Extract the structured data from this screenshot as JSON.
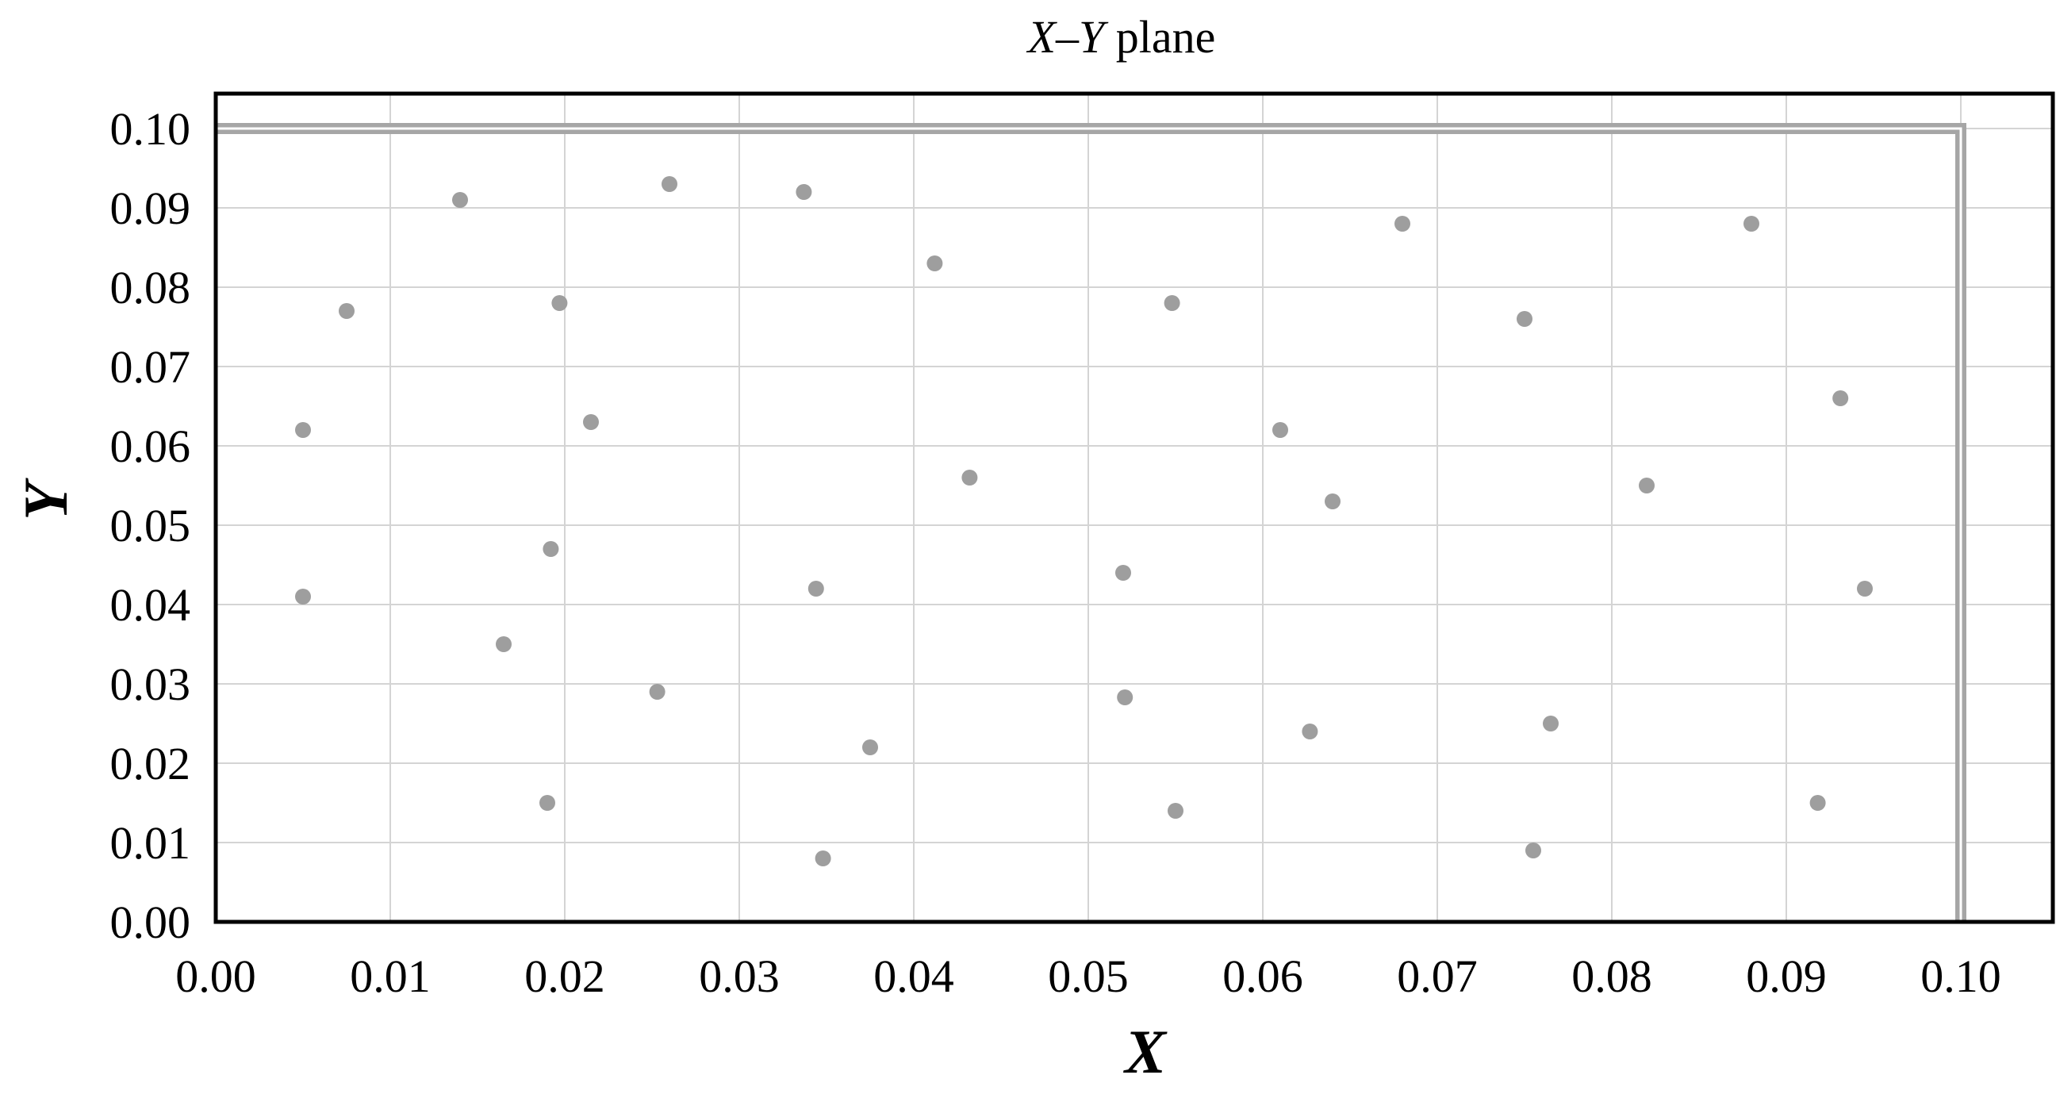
{
  "chart_data": {
    "type": "scatter",
    "title": {
      "var_x": "X",
      "dash": "–",
      "var_y": "Y",
      "rest": " plane"
    },
    "xlabel": "X",
    "ylabel": "Y",
    "xlim": [
      0.0,
      0.1
    ],
    "ylim": [
      0.0,
      0.1
    ],
    "x_ticks": [
      "0.00",
      "0.01",
      "0.02",
      "0.03",
      "0.04",
      "0.05",
      "0.06",
      "0.07",
      "0.08",
      "0.09",
      "0.10"
    ],
    "y_ticks": [
      "0.00",
      "0.01",
      "0.02",
      "0.03",
      "0.04",
      "0.05",
      "0.06",
      "0.07",
      "0.08",
      "0.09",
      "0.10"
    ],
    "grid": true,
    "legend": "none",
    "colors": {
      "points": "#9e9e9e",
      "grid": "#d4d4d4",
      "boundary": "#a6a6a6",
      "frame": "#000000"
    },
    "boundary_line": {
      "x": [
        0.0,
        0.1,
        0.1
      ],
      "y": [
        0.1,
        0.1,
        0.0
      ]
    },
    "series": [
      {
        "x": [
          0.005,
          0.0075,
          0.014,
          0.026,
          0.0337,
          0.0412,
          0.0197,
          0.0215,
          0.005,
          0.0192,
          0.0165,
          0.0253,
          0.019,
          0.0344,
          0.0375,
          0.0348,
          0.0432,
          0.0548,
          0.052,
          0.0521,
          0.055,
          0.061,
          0.064,
          0.068,
          0.0627,
          0.075,
          0.0765,
          0.0755,
          0.082,
          0.088,
          0.0931,
          0.0945,
          0.0918
        ],
        "y": [
          0.062,
          0.077,
          0.091,
          0.093,
          0.092,
          0.083,
          0.078,
          0.063,
          0.041,
          0.047,
          0.035,
          0.029,
          0.015,
          0.042,
          0.022,
          0.008,
          0.056,
          0.078,
          0.044,
          0.0283,
          0.014,
          0.062,
          0.053,
          0.088,
          0.024,
          0.076,
          0.025,
          0.009,
          0.055,
          0.088,
          0.066,
          0.042,
          0.015
        ]
      }
    ]
  }
}
